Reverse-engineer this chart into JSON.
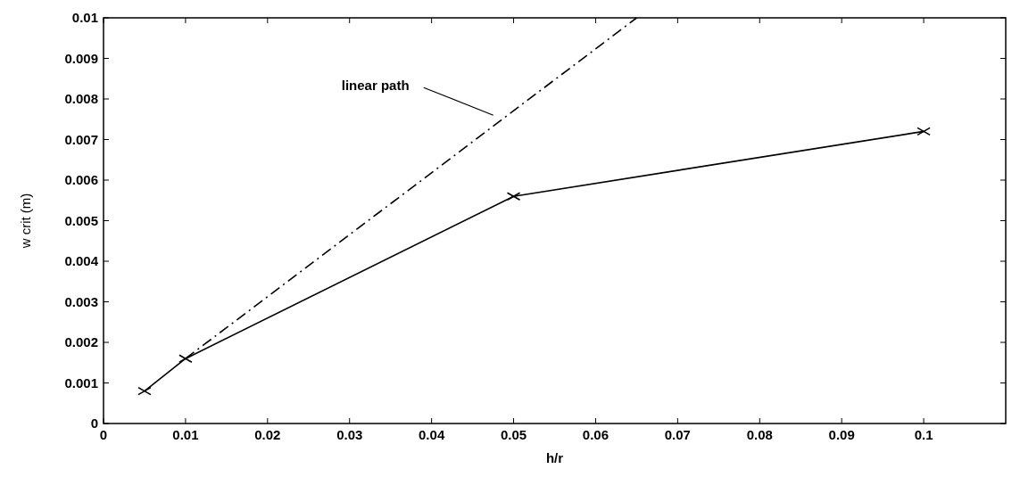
{
  "chart_data": {
    "type": "line",
    "xlabel": "h/r",
    "ylabel": "w crit (m)",
    "xlim": [
      0,
      0.11
    ],
    "ylim": [
      0,
      0.01
    ],
    "xticks": [
      0,
      0.01,
      0.02,
      0.03,
      0.04,
      0.05,
      0.06,
      0.07,
      0.08,
      0.09,
      0.1
    ],
    "yticks": [
      0,
      0.001,
      0.002,
      0.003,
      0.004,
      0.005,
      0.006,
      0.007,
      0.008,
      0.009,
      0.01
    ],
    "grid": false,
    "series": [
      {
        "color": "#000000",
        "x": [
          0.005,
          0.01,
          0.05,
          0.1
        ],
        "values": [
          0.0008,
          0.0016,
          0.0056,
          0.0072
        ],
        "marker": "cross",
        "line_style": "solid"
      },
      {
        "color": "#000000",
        "x": [
          0.01,
          0.065
        ],
        "values": [
          0.0016,
          0.01
        ],
        "line_style": "dashed"
      }
    ],
    "annotations": [
      "linear path"
    ]
  }
}
